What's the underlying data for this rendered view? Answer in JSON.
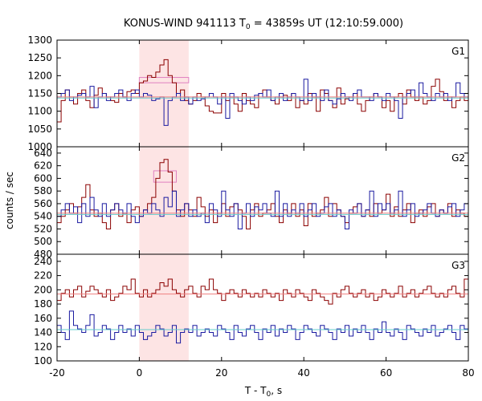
{
  "chart_data": {
    "type": "line",
    "title": "KONUS-WIND 941113 T",
    "title_sub": "0",
    "title_rest": " = 43859s UT (12:10:59.000)",
    "xlabel": "T - T",
    "xlabel_sub": "0",
    "xlabel_rest": ", s",
    "ylabel": "counts / sec",
    "xlim": [
      -20,
      80
    ],
    "x_ticks": [
      "-20",
      "0",
      "20",
      "40",
      "60",
      "80"
    ],
    "x_tick_values": [
      -20,
      0,
      20,
      40,
      60,
      80
    ],
    "highlight_interval": [
      0,
      12
    ],
    "grid": false,
    "colors": {
      "red_series": "#8b0000",
      "blue_series": "#1a1aa0",
      "red_background": "#f08080",
      "blue_background": "#66cccc",
      "highlight": "#fde4e4",
      "red_fit": "#e080c0"
    },
    "panels": [
      {
        "label": "G1",
        "ylim": [
          1000,
          1300
        ],
        "y_ticks": [
          "1000",
          "1050",
          "1100",
          "1150",
          "1200",
          "1250",
          "1300"
        ],
        "y_tick_values": [
          1000,
          1050,
          1100,
          1150,
          1200,
          1250,
          1300
        ],
        "background_red": 1140,
        "background_blue": 1137,
        "fit_box": {
          "x_start": 0,
          "x_end": 12,
          "low": 1180,
          "high": 1195
        },
        "series": [
          {
            "color": "red",
            "x_start": -20,
            "bin": 1.0,
            "values": [
              1070,
              1130,
              1160,
              1140,
              1120,
              1150,
              1160,
              1130,
              1110,
              1145,
              1165,
              1150,
              1140,
              1130,
              1125,
              1150,
              1140,
              1155,
              1160,
              1150,
              1180,
              1185,
              1200,
              1195,
              1210,
              1230,
              1245,
              1200,
              1180,
              1150,
              1160,
              1130,
              1120,
              1130,
              1150,
              1140,
              1115,
              1100,
              1095,
              1095,
              1150,
              1130,
              1140,
              1120,
              1100,
              1150,
              1130,
              1120,
              1110,
              1150,
              1160,
              1140,
              1130,
              1120,
              1140,
              1145,
              1130,
              1150,
              1110,
              1130,
              1120,
              1150,
              1140,
              1100,
              1160,
              1150,
              1130,
              1110,
              1165,
              1120,
              1135,
              1140,
              1150,
              1120,
              1100,
              1130,
              1140,
              1150,
              1140,
              1110,
              1130,
              1100,
              1140,
              1150,
              1120,
              1160,
              1140,
              1130,
              1140,
              1120,
              1130,
              1170,
              1190,
              1155,
              1130,
              1140,
              1110,
              1130,
              1140,
              1130,
              1145
            ]
          },
          {
            "color": "blue",
            "x_start": -20,
            "bin": 1.0,
            "values": [
              1140,
              1150,
              1160,
              1130,
              1140,
              1145,
              1150,
              1140,
              1170,
              1110,
              1140,
              1150,
              1130,
              1140,
              1150,
              1160,
              1140,
              1130,
              1150,
              1160,
              1140,
              1150,
              1145,
              1130,
              1135,
              1140,
              1060,
              1130,
              1140,
              1150,
              1130,
              1140,
              1120,
              1140,
              1130,
              1135,
              1140,
              1150,
              1140,
              1120,
              1140,
              1080,
              1150,
              1140,
              1130,
              1120,
              1140,
              1130,
              1145,
              1150,
              1140,
              1160,
              1130,
              1140,
              1150,
              1130,
              1140,
              1150,
              1140,
              1130,
              1190,
              1130,
              1150,
              1140,
              1130,
              1160,
              1130,
              1120,
              1135,
              1150,
              1140,
              1130,
              1150,
              1160,
              1140,
              1140,
              1130,
              1150,
              1140,
              1130,
              1150,
              1140,
              1130,
              1080,
              1140,
              1150,
              1160,
              1140,
              1180,
              1150,
              1140,
              1130,
              1150,
              1140,
              1150,
              1130,
              1140,
              1180,
              1150,
              1140,
              1150
            ]
          }
        ]
      },
      {
        "label": "G2",
        "ylim": [
          480,
          650
        ],
        "y_ticks": [
          "480",
          "500",
          "520",
          "540",
          "560",
          "580",
          "600",
          "620",
          "640"
        ],
        "y_tick_values": [
          480,
          500,
          520,
          540,
          560,
          580,
          600,
          620,
          640
        ],
        "background_red": 545,
        "background_blue": 543,
        "fit_box": {
          "x_start": 3.5,
          "x_end": 9,
          "low": 594,
          "high": 612
        },
        "series": [
          {
            "color": "red",
            "x_start": -20,
            "bin": 1.0,
            "values": [
              530,
              540,
              550,
              560,
              545,
              555,
              570,
              590,
              550,
              540,
              545,
              530,
              520,
              550,
              560,
              540,
              545,
              530,
              550,
              555,
              540,
              550,
              560,
              570,
              600,
              625,
              630,
              610,
              580,
              550,
              540,
              560,
              550,
              540,
              570,
              555,
              540,
              550,
              530,
              545,
              560,
              540,
              555,
              560,
              550,
              540,
              520,
              550,
              560,
              540,
              545,
              550,
              560,
              540,
              530,
              550,
              545,
              560,
              540,
              550,
              525,
              560,
              540,
              545,
              550,
              570,
              540,
              560,
              550,
              540,
              530,
              545,
              555,
              560,
              540,
              550,
              540,
              560,
              545,
              550,
              575,
              540,
              555,
              540,
              550,
              560,
              530,
              545,
              550,
              540,
              555,
              560,
              540,
              550,
              545,
              560,
              540,
              550,
              545,
              540,
              550
            ]
          },
          {
            "color": "blue",
            "x_start": -20,
            "bin": 1.0,
            "values": [
              540,
              550,
              560,
              545,
              555,
              530,
              560,
              540,
              570,
              550,
              540,
              560,
              540,
              550,
              560,
              550,
              545,
              560,
              540,
              530,
              540,
              550,
              545,
              560,
              550,
              540,
              570,
              555,
              580,
              540,
              550,
              560,
              540,
              550,
              540,
              545,
              530,
              560,
              550,
              540,
              580,
              550,
              540,
              560,
              520,
              545,
              560,
              540,
              555,
              550,
              560,
              545,
              540,
              580,
              540,
              560,
              540,
              550,
              545,
              560,
              540,
              550,
              560,
              540,
              545,
              555,
              560,
              540,
              550,
              540,
              520,
              550,
              545,
              560,
              540,
              550,
              580,
              540,
              560,
              550,
              560,
              545,
              550,
              580,
              540,
              550,
              560,
              540,
              545,
              550,
              560,
              545,
              540,
              550,
              545,
              555,
              560,
              540,
              550,
              560,
              545
            ]
          }
        ]
      },
      {
        "label": "G3",
        "ylim": [
          100,
          250
        ],
        "y_ticks": [
          "100",
          "120",
          "140",
          "160",
          "180",
          "200",
          "220",
          "240"
        ],
        "y_tick_values": [
          100,
          120,
          140,
          160,
          180,
          200,
          220,
          240
        ],
        "background_red": 194,
        "background_blue": 144,
        "fit_box": null,
        "series": [
          {
            "color": "red",
            "x_start": -20,
            "bin": 1.0,
            "values": [
              185,
              195,
              200,
              190,
              200,
              205,
              190,
              198,
              205,
              200,
              195,
              190,
              200,
              185,
              190,
              195,
              205,
              200,
              215,
              195,
              190,
              200,
              190,
              195,
              200,
              210,
              205,
              215,
              200,
              195,
              190,
              200,
              205,
              195,
              190,
              205,
              200,
              215,
              200,
              195,
              185,
              195,
              200,
              195,
              190,
              200,
              195,
              190,
              195,
              190,
              200,
              195,
              190,
              195,
              185,
              200,
              195,
              190,
              200,
              195,
              190,
              185,
              200,
              195,
              190,
              185,
              180,
              195,
              190,
              200,
              205,
              195,
              190,
              195,
              200,
              190,
              195,
              185,
              190,
              200,
              195,
              190,
              195,
              205,
              190,
              195,
              200,
              190,
              195,
              200,
              205,
              195,
              190,
              195,
              190,
              200,
              205,
              195,
              190,
              215,
              235
            ]
          },
          {
            "color": "blue",
            "x_start": -20,
            "bin": 1.0,
            "values": [
              150,
              140,
              130,
              170,
              150,
              145,
              140,
              150,
              165,
              135,
              140,
              150,
              145,
              130,
              140,
              150,
              140,
              145,
              135,
              150,
              140,
              130,
              135,
              140,
              150,
              145,
              135,
              140,
              150,
              125,
              140,
              145,
              140,
              150,
              135,
              140,
              145,
              140,
              135,
              150,
              145,
              140,
              130,
              150,
              140,
              135,
              145,
              150,
              140,
              130,
              145,
              140,
              150,
              135,
              145,
              140,
              150,
              145,
              130,
              140,
              150,
              145,
              140,
              135,
              150,
              145,
              140,
              130,
              145,
              140,
              150,
              135,
              145,
              140,
              150,
              140,
              130,
              145,
              140,
              155,
              140,
              135,
              145,
              140,
              130,
              150,
              145,
              140,
              135,
              145,
              140,
              150,
              135,
              140,
              145,
              150,
              140,
              130,
              150,
              145,
              140
            ]
          }
        ]
      }
    ]
  }
}
